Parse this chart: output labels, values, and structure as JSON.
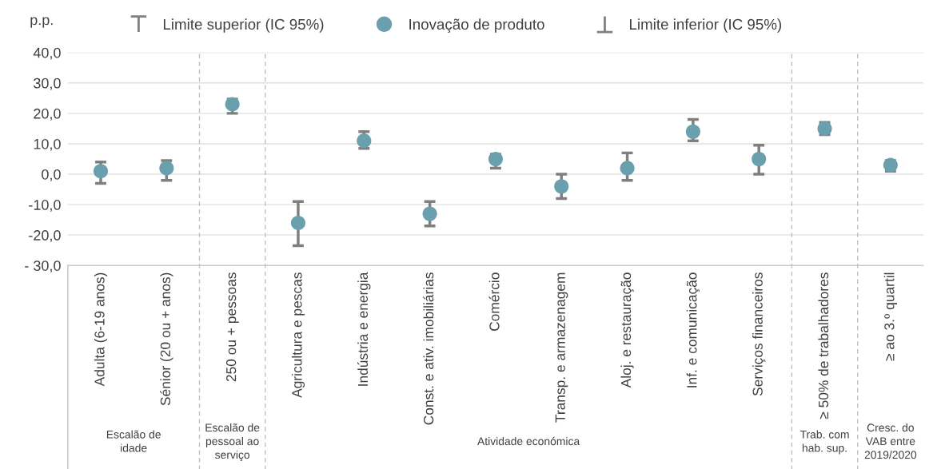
{
  "chart_data": {
    "type": "scatter",
    "ylabel": "p.p.",
    "categories": [
      "Adulta (6-19 anos)",
      "Sénior (20 ou + anos)",
      "250 ou + pessoas",
      "Agricultura e pescas",
      "Indústria e energia",
      "Const. e ativ. imobiliárias",
      "Comércio",
      "Transp. e armazenagem",
      "Aloj. e restauração",
      "Inf. e comunicação",
      "Serviços financeiros",
      "≥ 50% de trabalhadores",
      "≥ ao 3.º quartil"
    ],
    "series": [
      {
        "name": "Inovação de produto",
        "color": "#6a9fae",
        "values": [
          1,
          2,
          23,
          -16,
          11,
          -13,
          5,
          -4,
          2,
          14,
          5,
          15,
          3
        ],
        "errors": [
          [
            -3,
            4
          ],
          [
            -2,
            4.5
          ],
          [
            20,
            24.7
          ],
          [
            -23.5,
            -9
          ],
          [
            8.5,
            14
          ],
          [
            -17,
            -9
          ],
          [
            2,
            6.6
          ],
          [
            -8,
            0
          ],
          [
            -2,
            7
          ],
          [
            11,
            18
          ],
          [
            0,
            9.5
          ],
          [
            13,
            17
          ],
          [
            1,
            4.5
          ]
        ]
      }
    ],
    "ylim": [
      -30,
      40
    ],
    "yticks": [
      {
        "value": -30,
        "label": "- 30,0"
      },
      {
        "value": -20,
        "label": "-20,0"
      },
      {
        "value": -10,
        "label": "-10,0"
      },
      {
        "value": 0,
        "label": "0,0"
      },
      {
        "value": 10,
        "label": "10,0"
      },
      {
        "value": 20,
        "label": "20,0"
      },
      {
        "value": 30,
        "label": "30,0"
      },
      {
        "value": 40,
        "label": "40,0"
      }
    ],
    "annotations": [
      "Escalão de\nidade",
      "Escalão de\npessoal ao\nserviço",
      "Atividade económica",
      "Trab. com\nhab. sup.",
      "Cresc. do\nVAB entre\n2019/2020",
      "Limite superior (IC 95%)",
      "Limite inferior (IC 95%)"
    ],
    "grid": "y",
    "legend": "top",
    "marker": "circle"
  }
}
